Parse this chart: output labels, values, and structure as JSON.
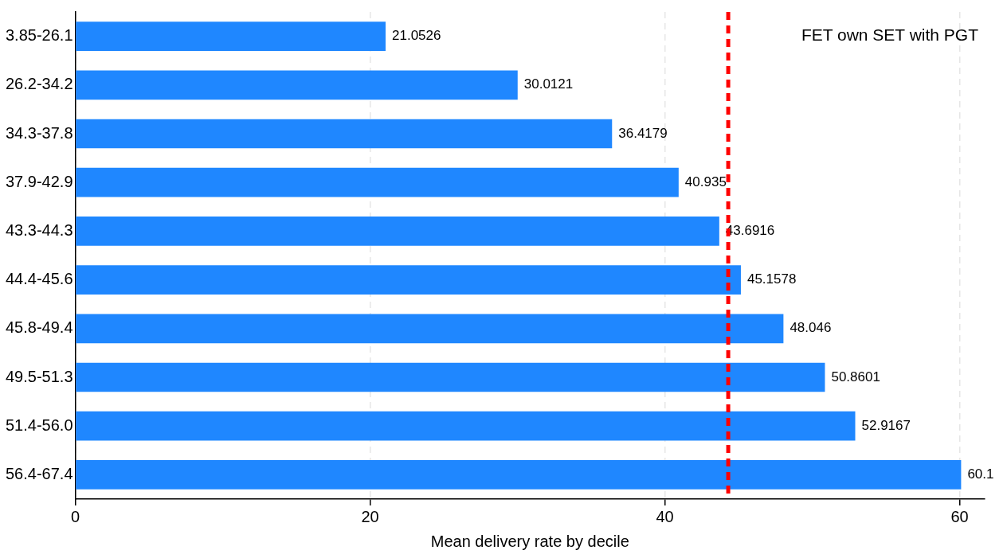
{
  "chart_data": {
    "type": "bar",
    "orientation": "horizontal",
    "title": "FET own SET with PGT",
    "xlabel": "Mean delivery rate by decile",
    "categories": [
      "3.85-26.1",
      "26.2-34.2",
      "34.3-37.8",
      "37.9-42.9",
      "43.3-44.3",
      "44.4-45.6",
      "45.8-49.4",
      "49.5-51.3",
      "51.4-56.0",
      "56.4-67.4"
    ],
    "values": [
      21.0526,
      30.0121,
      36.4179,
      40.935,
      43.6916,
      45.1578,
      48.046,
      50.8601,
      52.9167,
      60.1
    ],
    "color": "#1f87ff",
    "data_labels": true,
    "xlim": [
      0,
      61.7
    ],
    "xticks": [
      0,
      20,
      40,
      60
    ],
    "grid": "x",
    "ref_lines": [
      {
        "axis": "x",
        "value": 44.3,
        "color": "#ff0000",
        "line_style": "dashed"
      }
    ]
  }
}
